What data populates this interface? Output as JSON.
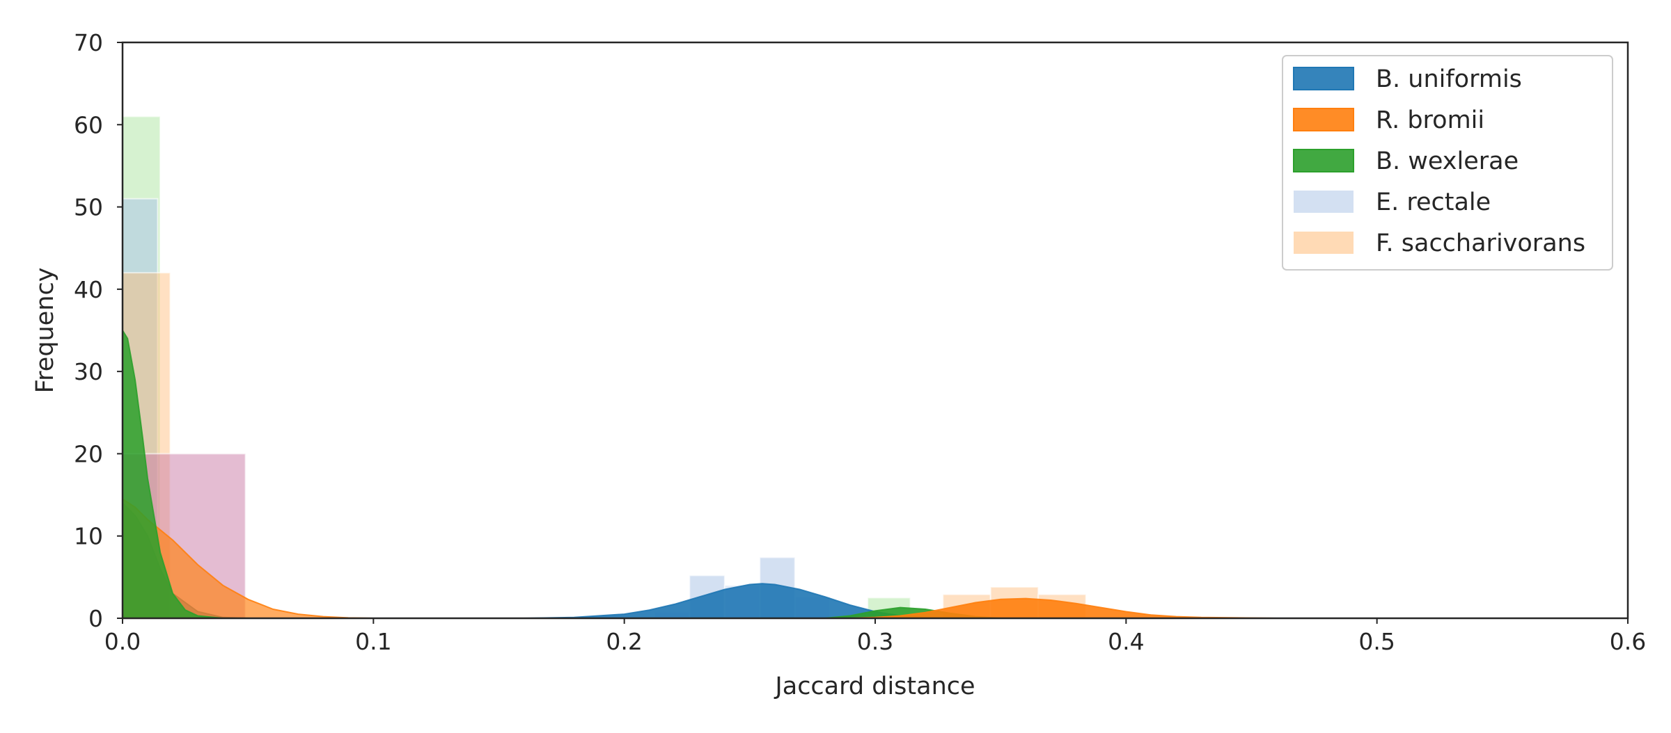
{
  "chart_data": {
    "type": "histogram-kde",
    "xlabel": "Jaccard distance",
    "ylabel": "Frequency",
    "xlim": [
      0.0,
      0.6
    ],
    "ylim": [
      0,
      70
    ],
    "xticks": [
      "0.0",
      "0.1",
      "0.2",
      "0.3",
      "0.4",
      "0.5",
      "0.6"
    ],
    "yticks": [
      "0",
      "10",
      "20",
      "30",
      "40",
      "50",
      "60",
      "70"
    ],
    "grid": false,
    "legend_position": "top-right",
    "legend": [
      {
        "name": "B. uniformis",
        "color": "#1f77b4",
        "style": "solid"
      },
      {
        "name": "R. bromii",
        "color": "#ff7f0e",
        "style": "solid"
      },
      {
        "name": "B. wexlerae",
        "color": "#2ca02c",
        "style": "solid"
      },
      {
        "name": "E. rectale",
        "color": "#aec7e8",
        "style": "pale"
      },
      {
        "name": "F. saccharivorans",
        "color": "#ffbb78",
        "style": "pale"
      }
    ],
    "histograms": [
      {
        "key": "b-wexlerae",
        "color": "#98df8a",
        "opacity": 0.4,
        "bins": [
          [
            0.0,
            0.015,
            61
          ],
          [
            0.297,
            0.314,
            2.5
          ]
        ]
      },
      {
        "key": "e-rectale",
        "color": "#aec7e8",
        "opacity": 0.55,
        "bins": [
          [
            0.0,
            0.014,
            51
          ],
          [
            0.226,
            0.24,
            5.2
          ],
          [
            0.254,
            0.268,
            7.4
          ]
        ]
      },
      {
        "key": "f-saccharivorans",
        "color": "#ffbb78",
        "opacity": 0.45,
        "bins": [
          [
            0.0,
            0.019,
            42
          ],
          [
            0.327,
            0.346,
            2.9
          ],
          [
            0.346,
            0.365,
            3.8
          ],
          [
            0.365,
            0.384,
            2.9
          ]
        ]
      },
      {
        "key": "other-pink",
        "color": "#c97aa6",
        "opacity": 0.5,
        "bins": [
          [
            0.0,
            0.049,
            20
          ]
        ]
      },
      {
        "key": "b-uniformis",
        "color": "#aec7e8",
        "opacity": 0.35,
        "bins": [
          [
            0.212,
            0.226,
            0.8
          ],
          [
            0.24,
            0.254,
            4.0
          ],
          [
            0.268,
            0.282,
            2.6
          ]
        ]
      }
    ],
    "kde": [
      {
        "key": "b-uniformis",
        "color": "#1f77b4",
        "opacity": 0.9,
        "points": [
          [
            0.16,
            0
          ],
          [
            0.18,
            0.1
          ],
          [
            0.2,
            0.5
          ],
          [
            0.21,
            1.0
          ],
          [
            0.22,
            1.7
          ],
          [
            0.23,
            2.6
          ],
          [
            0.24,
            3.5
          ],
          [
            0.25,
            4.1
          ],
          [
            0.255,
            4.2
          ],
          [
            0.26,
            4.1
          ],
          [
            0.27,
            3.5
          ],
          [
            0.28,
            2.6
          ],
          [
            0.29,
            1.6
          ],
          [
            0.3,
            0.8
          ],
          [
            0.31,
            0.3
          ],
          [
            0.32,
            0.1
          ],
          [
            0.33,
            0
          ]
        ]
      },
      {
        "key": "b-wexlerae-right",
        "color": "#2ca02c",
        "opacity": 0.9,
        "points": [
          [
            0.28,
            0
          ],
          [
            0.29,
            0.3
          ],
          [
            0.3,
            0.9
          ],
          [
            0.31,
            1.3
          ],
          [
            0.32,
            1.1
          ],
          [
            0.33,
            0.6
          ],
          [
            0.34,
            0.2
          ],
          [
            0.35,
            0
          ]
        ]
      },
      {
        "key": "r-bromii-right",
        "color": "#ff7f0e",
        "opacity": 0.9,
        "points": [
          [
            0.29,
            0
          ],
          [
            0.3,
            0.1
          ],
          [
            0.31,
            0.3
          ],
          [
            0.32,
            0.7
          ],
          [
            0.33,
            1.3
          ],
          [
            0.34,
            1.9
          ],
          [
            0.35,
            2.3
          ],
          [
            0.36,
            2.4
          ],
          [
            0.37,
            2.2
          ],
          [
            0.38,
            1.8
          ],
          [
            0.39,
            1.3
          ],
          [
            0.4,
            0.8
          ],
          [
            0.41,
            0.4
          ],
          [
            0.42,
            0.2
          ],
          [
            0.43,
            0.1
          ],
          [
            0.46,
            0
          ]
        ]
      },
      {
        "key": "e-rectale-left",
        "color": "#6b7a8f",
        "opacity": 0.7,
        "points": [
          [
            0.0,
            14
          ],
          [
            0.005,
            12.5
          ],
          [
            0.01,
            10
          ],
          [
            0.015,
            6
          ],
          [
            0.02,
            3
          ],
          [
            0.03,
            0.8
          ],
          [
            0.04,
            0.1
          ],
          [
            0.05,
            0
          ]
        ]
      },
      {
        "key": "r-bromii-left",
        "color": "#ff7f0e",
        "opacity": 0.65,
        "points": [
          [
            0.0,
            14.5
          ],
          [
            0.005,
            13.5
          ],
          [
            0.01,
            12
          ],
          [
            0.02,
            9.5
          ],
          [
            0.03,
            6.5
          ],
          [
            0.04,
            4.0
          ],
          [
            0.05,
            2.3
          ],
          [
            0.06,
            1.1
          ],
          [
            0.07,
            0.5
          ],
          [
            0.08,
            0.2
          ],
          [
            0.09,
            0.05
          ],
          [
            0.1,
            0
          ]
        ]
      },
      {
        "key": "b-wexlerae-left",
        "color": "#2ca02c",
        "opacity": 0.85,
        "points": [
          [
            0.0,
            35
          ],
          [
            0.002,
            34
          ],
          [
            0.005,
            29
          ],
          [
            0.008,
            22
          ],
          [
            0.01,
            17
          ],
          [
            0.015,
            8
          ],
          [
            0.02,
            3
          ],
          [
            0.025,
            1
          ],
          [
            0.03,
            0.3
          ],
          [
            0.04,
            0
          ]
        ]
      }
    ]
  }
}
